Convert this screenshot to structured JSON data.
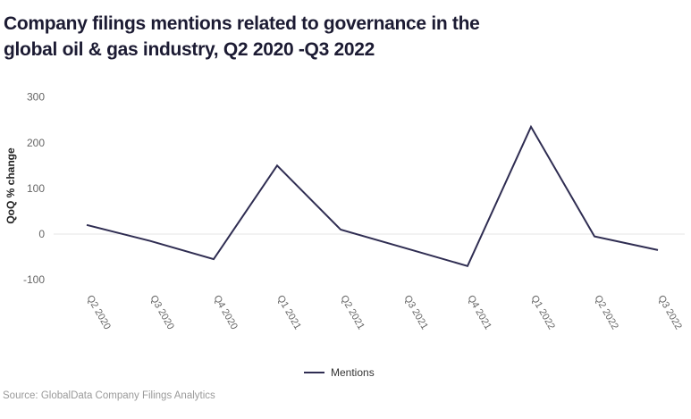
{
  "header": {
    "title_line1": "Company filings mentions related to governance in the",
    "title_line2": "global oil & gas industry, Q2 2020 -Q3 2022"
  },
  "legend": {
    "items": [
      {
        "label": "Mentions",
        "color": "#2f2d52"
      }
    ]
  },
  "footer": {
    "source": "Source: GlobalData Company Filings Analytics"
  },
  "colors": {
    "line": "#2f2d52",
    "title_text": "#1c1b33",
    "axis_labels": "#666666",
    "y_axis_title": "#222222",
    "zero_gridline": "#e6e6e6",
    "legend_text": "#333333",
    "source_text": "#9a9a9a",
    "background": "#ffffff"
  },
  "chart_data": {
    "type": "line",
    "title": "Company filings mentions related to governance in the global oil & gas industry, Q2 2020 -Q3 2022",
    "categories": [
      "Q2 2020",
      "Q3 2020",
      "Q4 2020",
      "Q1 2021",
      "Q2 2021",
      "Q3 2021",
      "Q4 2021",
      "Q1 2022",
      "Q2 2022",
      "Q3 2022"
    ],
    "series": [
      {
        "name": "Mentions",
        "color": "#2f2d52",
        "values": [
          20,
          -15,
          -55,
          150,
          10,
          -30,
          -70,
          235,
          -5,
          -35
        ]
      }
    ],
    "xlabel": "",
    "ylabel": "QoQ % change",
    "ylim": [
      -100,
      300
    ],
    "yticks": [
      300,
      200,
      100,
      0,
      -100
    ],
    "x_tick_rotation_deg": 60,
    "grid": "zero-line-only",
    "legend_position": "bottom-center"
  }
}
